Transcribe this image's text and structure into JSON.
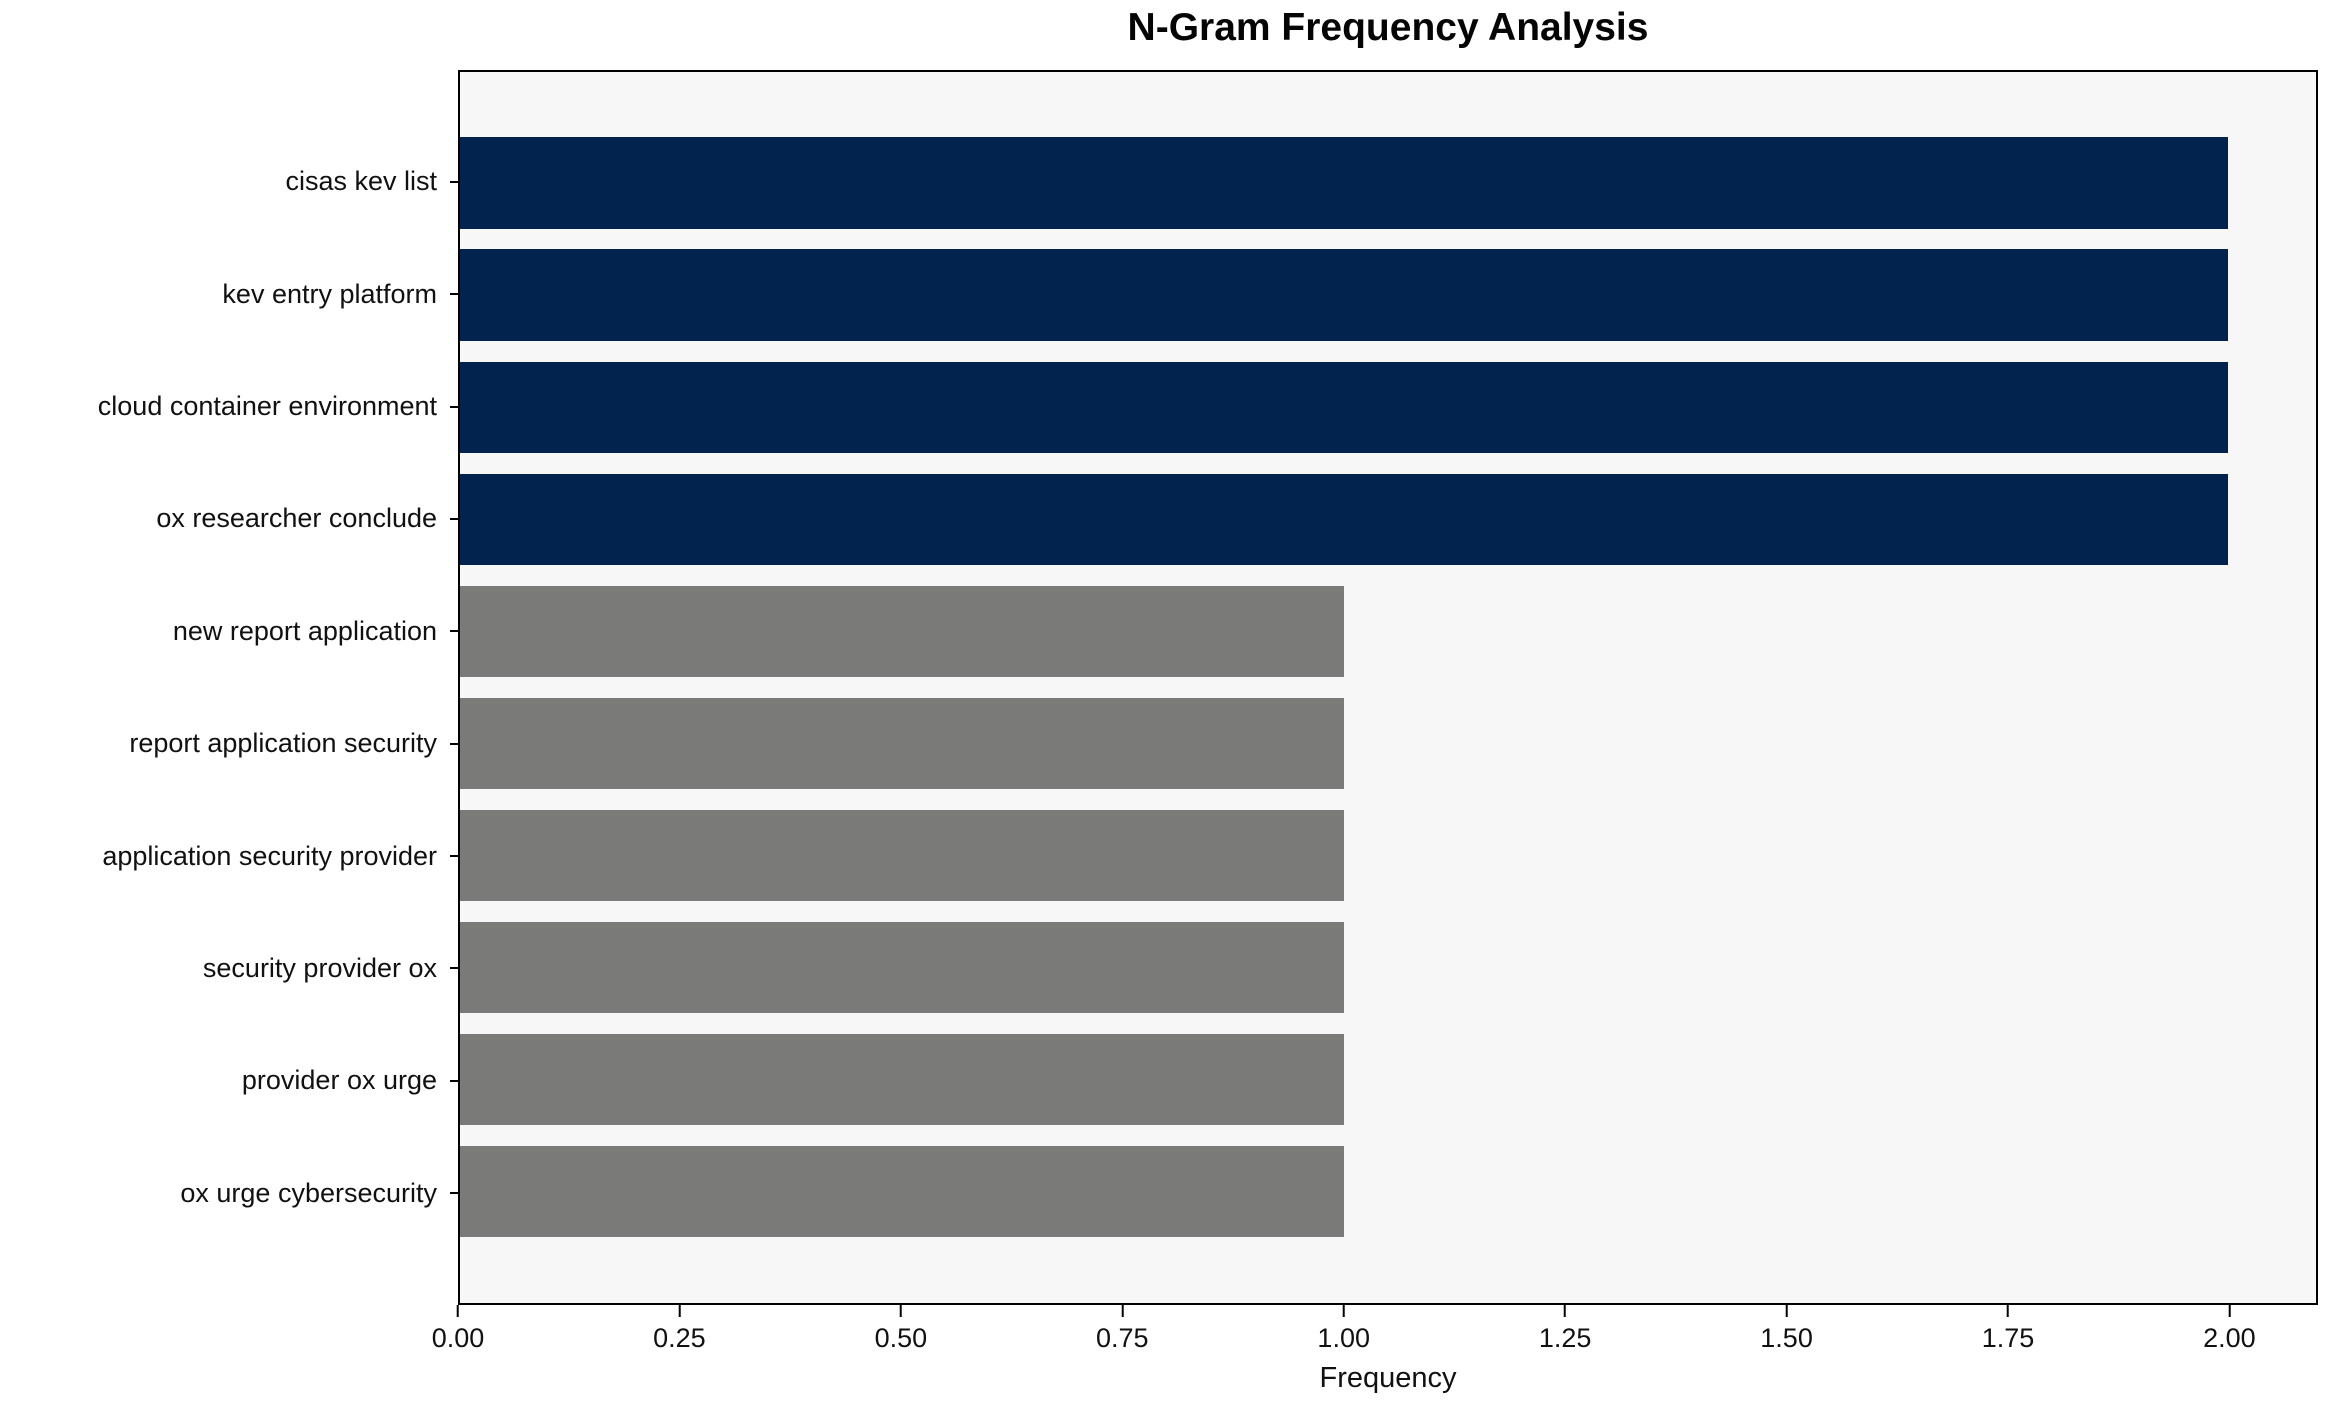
{
  "title": "N-Gram Frequency Analysis",
  "chart_data": {
    "type": "bar",
    "orientation": "horizontal",
    "title": "N-Gram Frequency Analysis",
    "categories": [
      "cisas kev list",
      "kev entry platform",
      "cloud container environment",
      "ox researcher conclude",
      "new report application",
      "report application security",
      "application security provider",
      "security provider ox",
      "provider ox urge",
      "ox urge cybersecurity"
    ],
    "values": [
      2,
      2,
      2,
      2,
      1,
      1,
      1,
      1,
      1,
      1
    ],
    "bar_colors": [
      "#02234d",
      "#02234d",
      "#02234d",
      "#02234d",
      "#7a7b78",
      "#7a7b78",
      "#7a7b78",
      "#7a7b78",
      "#7a7b78",
      "#7a7b78"
    ],
    "xlabel": "Frequency",
    "ylabel": "",
    "xlim": [
      0,
      2.1
    ],
    "x_ticks": [
      0,
      0.25,
      0.5,
      0.75,
      1.0,
      1.25,
      1.5,
      1.75,
      2.0
    ],
    "x_tick_labels": [
      "0.00",
      "0.25",
      "0.50",
      "0.75",
      "1.00",
      "1.25",
      "1.50",
      "1.75",
      "2.00"
    ],
    "grid": false,
    "legend": "none",
    "colors": {
      "highlight_bar": "#02234d",
      "default_bar": "#7a7b78",
      "plot_background": "#f7f7f7",
      "figure_background": "#ffffff",
      "spine": "#000000",
      "text": "#111111"
    }
  }
}
